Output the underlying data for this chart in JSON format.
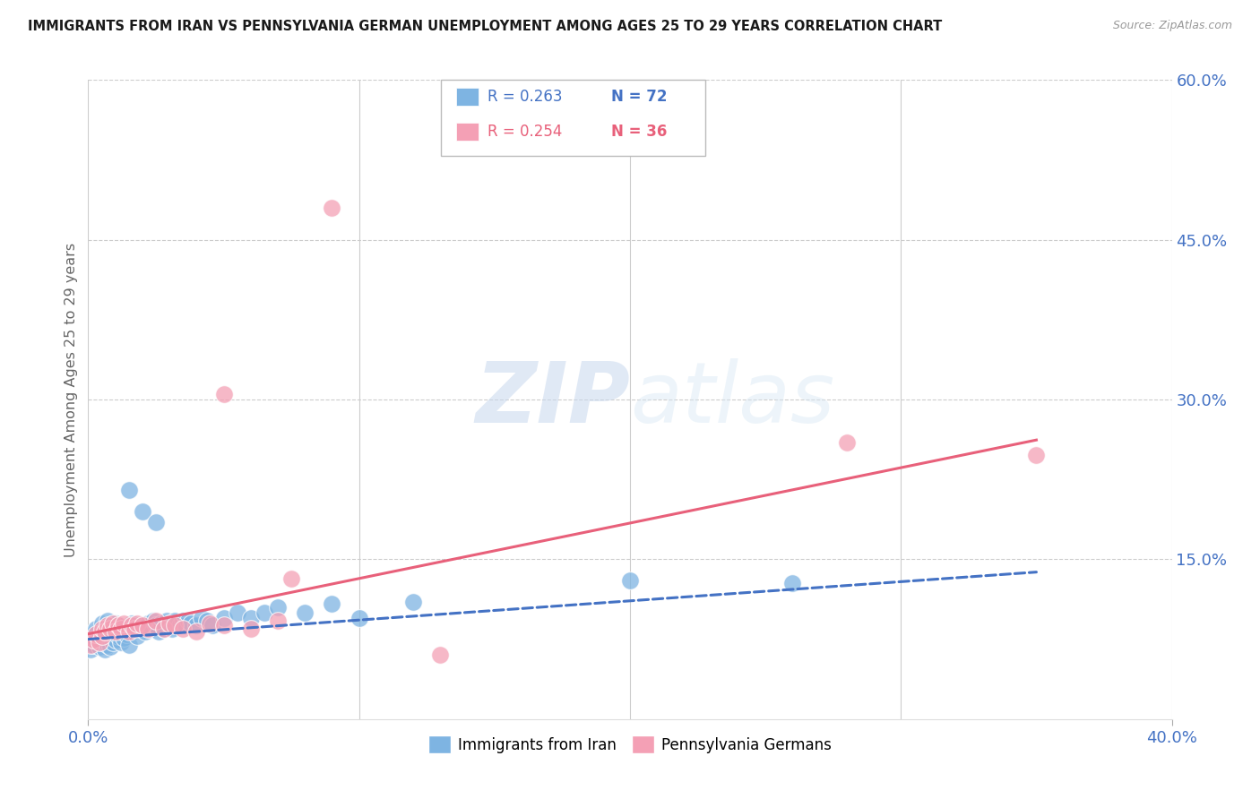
{
  "title": "IMMIGRANTS FROM IRAN VS PENNSYLVANIA GERMAN UNEMPLOYMENT AMONG AGES 25 TO 29 YEARS CORRELATION CHART",
  "source": "Source: ZipAtlas.com",
  "ylabel": "Unemployment Among Ages 25 to 29 years",
  "xlim": [
    0.0,
    0.4
  ],
  "ylim": [
    0.0,
    0.6
  ],
  "xtick_labels": [
    "0.0%",
    "40.0%"
  ],
  "xtick_positions": [
    0.0,
    0.4
  ],
  "ytick_labels": [
    "60.0%",
    "45.0%",
    "30.0%",
    "15.0%"
  ],
  "ytick_positions": [
    0.6,
    0.45,
    0.3,
    0.15
  ],
  "grid_color": "#cccccc",
  "background_color": "#ffffff",
  "watermark_zip": "ZIP",
  "watermark_atlas": "atlas",
  "legend_r1": "R = 0.263",
  "legend_n1": "N = 72",
  "legend_r2": "R = 0.254",
  "legend_n2": "N = 36",
  "blue_color": "#7eb4e2",
  "pink_color": "#f4a0b5",
  "blue_line_color": "#4472c4",
  "pink_line_color": "#e8607a",
  "axis_label_color": "#4472c4",
  "title_color": "#1a1a1a",
  "blue_scatter_x": [
    0.001,
    0.002,
    0.002,
    0.003,
    0.003,
    0.004,
    0.004,
    0.005,
    0.005,
    0.005,
    0.006,
    0.006,
    0.006,
    0.007,
    0.007,
    0.007,
    0.008,
    0.008,
    0.009,
    0.009,
    0.01,
    0.01,
    0.011,
    0.011,
    0.012,
    0.012,
    0.013,
    0.013,
    0.014,
    0.015,
    0.015,
    0.016,
    0.017,
    0.018,
    0.019,
    0.02,
    0.021,
    0.022,
    0.023,
    0.024,
    0.025,
    0.026,
    0.027,
    0.028,
    0.029,
    0.03,
    0.031,
    0.032,
    0.033,
    0.034,
    0.035,
    0.036,
    0.037,
    0.038,
    0.04,
    0.042,
    0.044,
    0.046,
    0.05,
    0.055,
    0.06,
    0.065,
    0.07,
    0.08,
    0.09,
    0.1,
    0.12,
    0.015,
    0.02,
    0.025,
    0.2,
    0.26
  ],
  "blue_scatter_y": [
    0.065,
    0.07,
    0.08,
    0.075,
    0.085,
    0.068,
    0.078,
    0.072,
    0.082,
    0.09,
    0.065,
    0.075,
    0.085,
    0.07,
    0.08,
    0.092,
    0.068,
    0.088,
    0.072,
    0.082,
    0.075,
    0.09,
    0.078,
    0.088,
    0.072,
    0.082,
    0.076,
    0.086,
    0.08,
    0.07,
    0.085,
    0.09,
    0.083,
    0.078,
    0.085,
    0.088,
    0.082,
    0.09,
    0.085,
    0.092,
    0.088,
    0.082,
    0.09,
    0.085,
    0.092,
    0.088,
    0.085,
    0.092,
    0.09,
    0.088,
    0.092,
    0.088,
    0.092,
    0.09,
    0.088,
    0.095,
    0.092,
    0.088,
    0.095,
    0.1,
    0.095,
    0.1,
    0.105,
    0.1,
    0.108,
    0.095,
    0.11,
    0.215,
    0.195,
    0.185,
    0.13,
    0.128
  ],
  "pink_scatter_x": [
    0.001,
    0.002,
    0.003,
    0.004,
    0.005,
    0.005,
    0.006,
    0.007,
    0.008,
    0.009,
    0.01,
    0.011,
    0.012,
    0.013,
    0.015,
    0.016,
    0.017,
    0.018,
    0.02,
    0.022,
    0.025,
    0.028,
    0.03,
    0.032,
    0.035,
    0.04,
    0.045,
    0.05,
    0.06,
    0.07,
    0.05,
    0.075,
    0.28,
    0.35,
    0.09,
    0.13
  ],
  "pink_scatter_y": [
    0.07,
    0.075,
    0.08,
    0.072,
    0.078,
    0.085,
    0.082,
    0.088,
    0.085,
    0.09,
    0.082,
    0.088,
    0.085,
    0.09,
    0.082,
    0.088,
    0.085,
    0.09,
    0.088,
    0.085,
    0.092,
    0.085,
    0.09,
    0.088,
    0.085,
    0.082,
    0.09,
    0.088,
    0.085,
    0.092,
    0.305,
    0.132,
    0.26,
    0.248,
    0.48,
    0.06
  ],
  "blue_trendline_x": [
    0.0,
    0.35
  ],
  "blue_trendline_y": [
    0.075,
    0.138
  ],
  "pink_trendline_x": [
    0.0,
    0.35
  ],
  "pink_trendline_y": [
    0.08,
    0.262
  ]
}
